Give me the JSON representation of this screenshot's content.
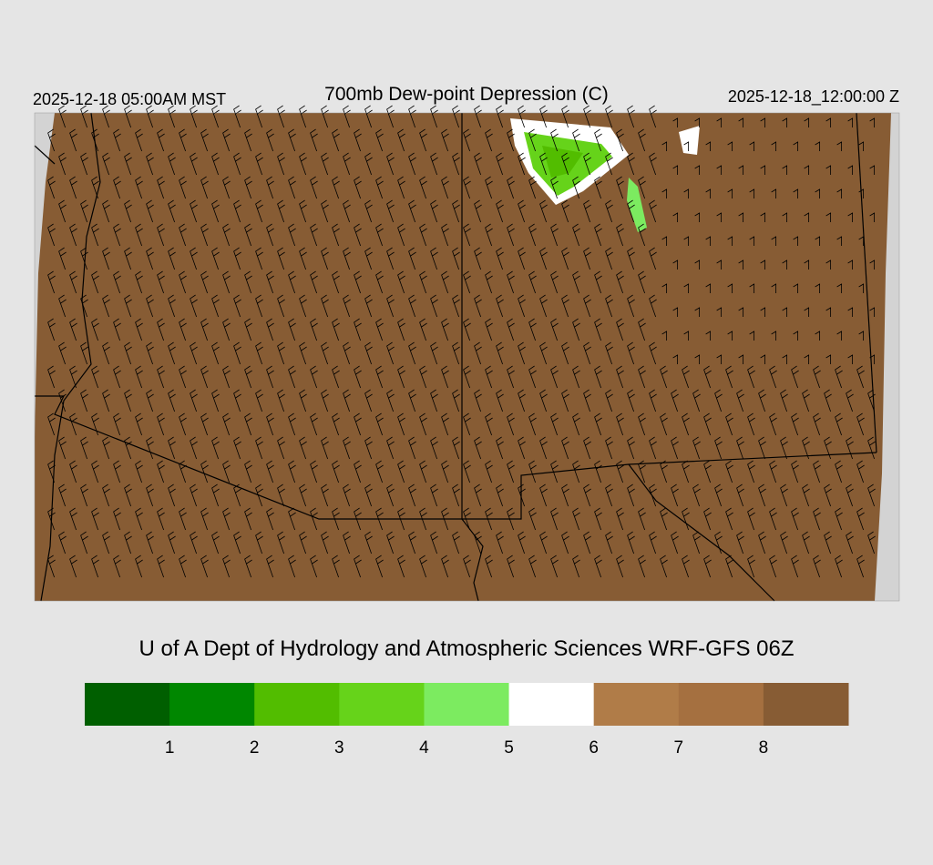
{
  "header": {
    "valid_local": "2025-12-18 05:00AM MST",
    "title": "700mb Dew-point Depression (C)",
    "valid_utc": "2025-12-18_12:00:00 Z"
  },
  "footer": {
    "credit": "U of A Dept of Hydrology and Atmospheric Sciences WRF-GFS 06Z"
  },
  "legend": {
    "colors": [
      "#005f00",
      "#008700",
      "#52bd00",
      "#66d31a",
      "#7ceb60",
      "#ffffff",
      "#b07c48",
      "#a57040",
      "#875c34"
    ],
    "labels": [
      1,
      2,
      3,
      4,
      5,
      6,
      7,
      8
    ]
  }
}
